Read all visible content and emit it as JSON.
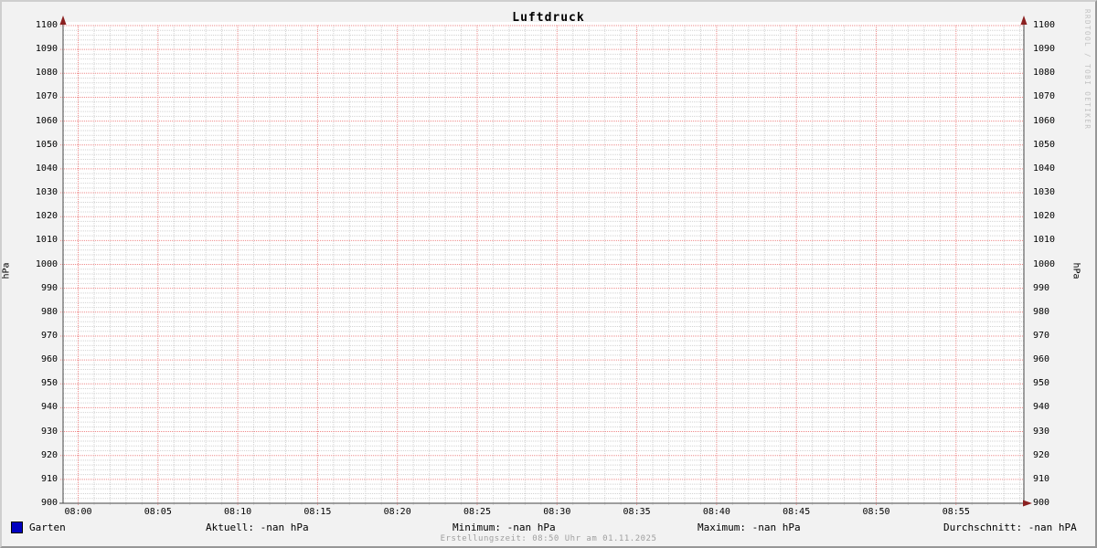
{
  "title": "Luftdruck",
  "chart_data": {
    "type": "line",
    "title": "Luftdruck",
    "ylabel": "hPa",
    "ylabel_right": "hPa",
    "ylim": [
      900,
      1100
    ],
    "y_tick_step": 10,
    "y_minor_step": 2,
    "x_ticks": [
      "08:00",
      "08:05",
      "08:10",
      "08:15",
      "08:20",
      "08:25",
      "08:30",
      "08:35",
      "08:40",
      "08:45",
      "08:50",
      "08:55"
    ],
    "x_minor_per_major": 5,
    "grid": true,
    "legend_position": "bottom",
    "series": [
      {
        "name": "Garten",
        "color": "#0000c0",
        "values": []
      }
    ]
  },
  "legend": {
    "series_label": "Garten",
    "stats": [
      {
        "text": "Aktuell: -nan hPa"
      },
      {
        "text": "Minimum: -nan hPa"
      },
      {
        "text": "Maximum: -nan hPa"
      },
      {
        "text": "Durchschnitt: -nan hPA"
      }
    ]
  },
  "footer": {
    "text": "Erstellungszeit: 08:50 Uhr am 01.11.2025"
  },
  "watermark": "RRDTOOL / TOBI OETIKER",
  "colors": {
    "background": "#f2f2f2",
    "canvas": "#ffffff",
    "major_grid": "#ee8a8a",
    "minor_grid": "#d2d2d2",
    "axis": "#444444",
    "arrow": "#8b2020",
    "series": "#0000c0"
  }
}
